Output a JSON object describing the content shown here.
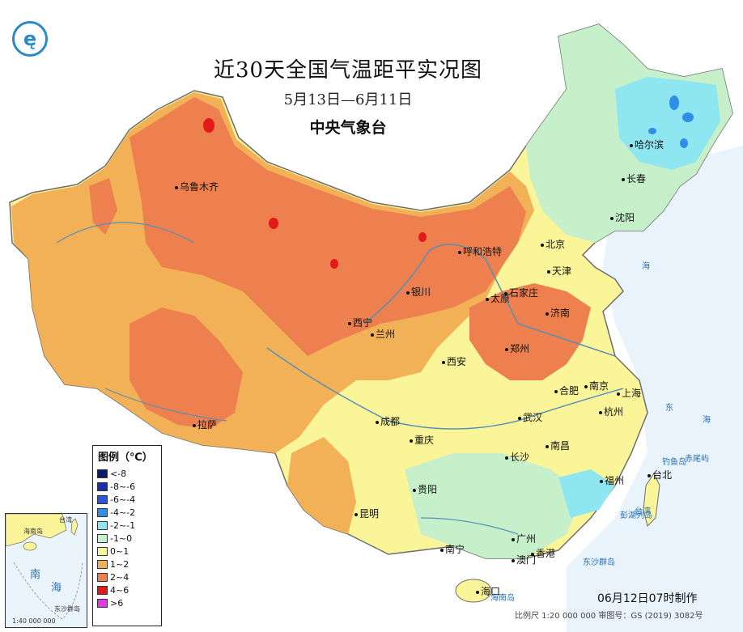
{
  "map": {
    "title": "近30天全国气温距平实况图",
    "period": "5月13日—6月11日",
    "issuer": "中央气象台",
    "made_time": "06月12日07时制作",
    "scale_text": "比例尺 1:20 000 000   审图号：GS (2019) 3082号"
  },
  "legend": {
    "title": "图例（℃）",
    "items": [
      {
        "label": "<-8",
        "color": "#0b1a6e"
      },
      {
        "label": "-8~-6",
        "color": "#1a2fb0"
      },
      {
        "label": "-6~-4",
        "color": "#2a57e0"
      },
      {
        "label": "-4~-2",
        "color": "#2f8fe8"
      },
      {
        "label": "-2~-1",
        "color": "#8ee6f0"
      },
      {
        "label": "-1~0",
        "color": "#c6f0c9"
      },
      {
        "label": "0~1",
        "color": "#fbf59a"
      },
      {
        "label": "1~2",
        "color": "#f2b057"
      },
      {
        "label": "2~4",
        "color": "#ee7f4e"
      },
      {
        "label": "4~6",
        "color": "#e21a1a"
      },
      {
        "label": ">6",
        "color": "#e23ae0"
      }
    ]
  },
  "cities": [
    {
      "name": "哈尔滨"
    },
    {
      "name": "长春"
    },
    {
      "name": "沈阳"
    },
    {
      "name": "北京"
    },
    {
      "name": "天津"
    },
    {
      "name": "呼和浩特"
    },
    {
      "name": "石家庄"
    },
    {
      "name": "太原"
    },
    {
      "name": "济南"
    },
    {
      "name": "郑州"
    },
    {
      "name": "银川"
    },
    {
      "name": "西宁"
    },
    {
      "name": "兰州"
    },
    {
      "name": "西安"
    },
    {
      "name": "乌鲁木齐"
    },
    {
      "name": "拉萨"
    },
    {
      "name": "成都"
    },
    {
      "name": "重庆"
    },
    {
      "name": "武汉"
    },
    {
      "name": "合肥"
    },
    {
      "name": "南京"
    },
    {
      "name": "上海"
    },
    {
      "name": "杭州"
    },
    {
      "name": "南昌"
    },
    {
      "name": "长沙"
    },
    {
      "name": "贵阳"
    },
    {
      "name": "昆明"
    },
    {
      "name": "福州"
    },
    {
      "name": "台北"
    },
    {
      "name": "南宁"
    },
    {
      "name": "广州"
    },
    {
      "name": "澳门"
    },
    {
      "name": "香港"
    },
    {
      "name": "海口"
    }
  ],
  "places": [
    {
      "name": "海"
    },
    {
      "name": "东"
    },
    {
      "name": "海"
    },
    {
      "name": "赤尾屿"
    },
    {
      "name": "钓鱼岛"
    },
    {
      "name": "台湾"
    },
    {
      "name": "海南岛"
    },
    {
      "name": "东沙群岛"
    },
    {
      "name": "彭湖列岛"
    }
  ],
  "inset": {
    "labels": [
      "海南岛",
      "台湾",
      "南",
      "海",
      "东沙群岛",
      "1:40 000 000"
    ]
  }
}
